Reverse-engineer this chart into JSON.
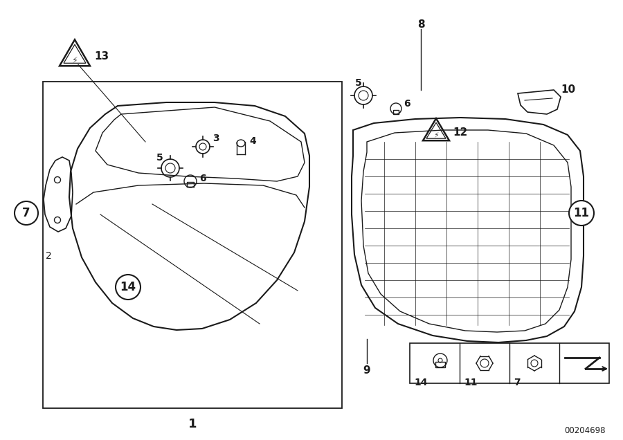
{
  "bg_color": "#ffffff",
  "line_color": "#1a1a1a",
  "fig_width": 9.0,
  "fig_height": 6.36,
  "part_code": "00204698"
}
